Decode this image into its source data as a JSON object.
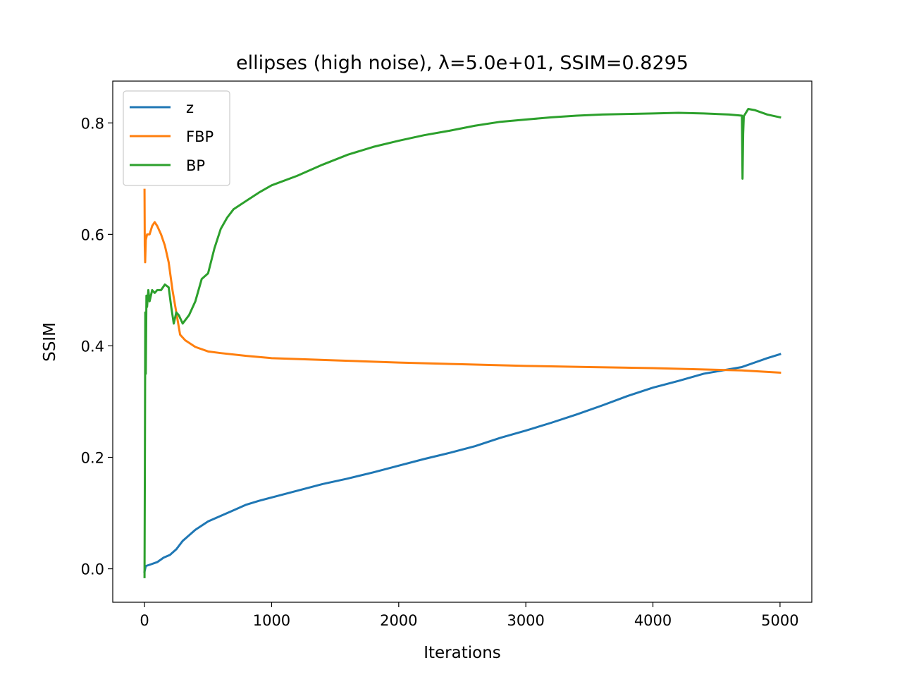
{
  "chart_data": {
    "type": "line",
    "title": "ellipses (high noise), λ=5.0e+01, SSIM=0.8295",
    "xlabel": "Iterations",
    "ylabel": "SSIM",
    "xlim": [
      -250,
      5250
    ],
    "ylim": [
      -0.06,
      0.875
    ],
    "xticks": [
      0,
      1000,
      2000,
      3000,
      4000,
      5000
    ],
    "xtick_labels": [
      "0",
      "1000",
      "2000",
      "3000",
      "4000",
      "5000"
    ],
    "yticks": [
      0.0,
      0.2,
      0.4,
      0.6,
      0.8
    ],
    "ytick_labels": [
      "0.0",
      "0.2",
      "0.4",
      "0.6",
      "0.8"
    ],
    "grid": false,
    "legend_position": "upper-left",
    "series": [
      {
        "name": "z",
        "color": "#1f77b4",
        "x": [
          0,
          10,
          50,
          100,
          150,
          200,
          250,
          300,
          400,
          500,
          600,
          700,
          800,
          900,
          1000,
          1200,
          1400,
          1600,
          1800,
          2000,
          2200,
          2400,
          2600,
          2800,
          3000,
          3200,
          3400,
          3600,
          3800,
          4000,
          4200,
          4400,
          4600,
          4700,
          4800,
          4900,
          5000
        ],
        "y": [
          -0.005,
          0.005,
          0.008,
          0.012,
          0.02,
          0.025,
          0.035,
          0.05,
          0.07,
          0.085,
          0.095,
          0.105,
          0.115,
          0.122,
          0.128,
          0.14,
          0.152,
          0.162,
          0.173,
          0.185,
          0.197,
          0.208,
          0.22,
          0.235,
          0.248,
          0.262,
          0.277,
          0.293,
          0.31,
          0.325,
          0.337,
          0.35,
          0.358,
          0.362,
          0.37,
          0.378,
          0.385
        ]
      },
      {
        "name": "FBP",
        "color": "#ff7f0e",
        "x": [
          0,
          2,
          5,
          10,
          20,
          40,
          60,
          80,
          100,
          130,
          160,
          190,
          220,
          250,
          280,
          320,
          400,
          500,
          600,
          800,
          1000,
          1500,
          2000,
          2500,
          3000,
          3500,
          4000,
          4500,
          4700,
          5000
        ],
        "y": [
          0.68,
          0.58,
          0.55,
          0.59,
          0.6,
          0.6,
          0.615,
          0.622,
          0.615,
          0.6,
          0.58,
          0.55,
          0.5,
          0.46,
          0.42,
          0.41,
          0.398,
          0.39,
          0.387,
          0.382,
          0.378,
          0.374,
          0.37,
          0.367,
          0.364,
          0.362,
          0.36,
          0.357,
          0.356,
          0.352
        ]
      },
      {
        "name": "BP",
        "color": "#2ca02c",
        "x": [
          0,
          3,
          6,
          10,
          15,
          20,
          30,
          40,
          60,
          80,
          100,
          130,
          160,
          190,
          210,
          230,
          250,
          270,
          300,
          350,
          400,
          450,
          500,
          550,
          600,
          650,
          700,
          800,
          900,
          1000,
          1200,
          1400,
          1600,
          1800,
          2000,
          2200,
          2400,
          2600,
          2800,
          3000,
          3200,
          3400,
          3600,
          3800,
          4000,
          4200,
          4400,
          4600,
          4700,
          4705,
          4710,
          4715,
          4750,
          4800,
          4900,
          5000
        ],
        "y": [
          -0.015,
          0.2,
          0.46,
          0.35,
          0.49,
          0.47,
          0.5,
          0.48,
          0.5,
          0.495,
          0.5,
          0.5,
          0.51,
          0.505,
          0.47,
          0.44,
          0.46,
          0.455,
          0.44,
          0.455,
          0.48,
          0.52,
          0.53,
          0.575,
          0.61,
          0.63,
          0.645,
          0.66,
          0.675,
          0.688,
          0.705,
          0.725,
          0.743,
          0.757,
          0.768,
          0.778,
          0.786,
          0.795,
          0.802,
          0.806,
          0.81,
          0.813,
          0.815,
          0.816,
          0.817,
          0.818,
          0.817,
          0.815,
          0.813,
          0.7,
          0.78,
          0.812,
          0.825,
          0.823,
          0.815,
          0.81
        ]
      }
    ]
  }
}
